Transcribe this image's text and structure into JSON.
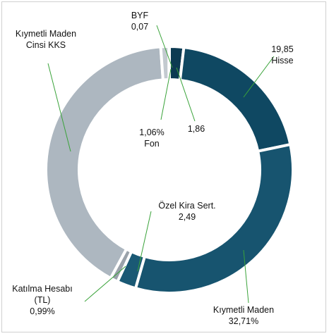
{
  "chart_data": {
    "type": "pie",
    "donut": true,
    "categories": [
      null,
      "Hisse",
      "Kıymetli Maden",
      "Özel Kira Sert.",
      "Katılma Hesabı (TL)",
      "Kıymetli Maden Cinsi KKS",
      "Fon",
      "BYF"
    ],
    "values": [
      1.86,
      19.85,
      32.71,
      2.49,
      0.99,
      40.97,
      1.06,
      0.07
    ],
    "value_labels": [
      "1,86",
      "19,85",
      "32,71%",
      "2,49",
      "0,99%",
      null,
      "1,06%",
      "0,07"
    ],
    "colors": [
      "#0c3a52",
      "#0f4862",
      "#17546f",
      "#1a5974",
      "#9aa2aa",
      "#adb7c0",
      "#c3cad0",
      "#0c3a52"
    ]
  }
}
